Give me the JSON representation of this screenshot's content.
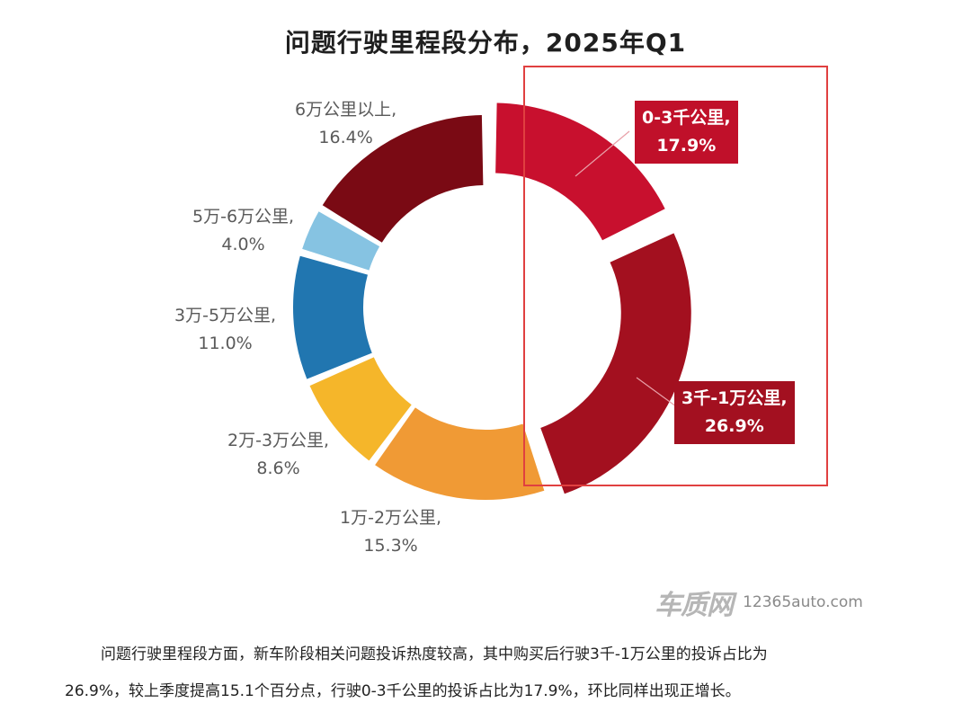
{
  "chart_data": {
    "type": "pie",
    "style": "donut",
    "title": "问题行驶里程段分布，2025年Q1",
    "slices": [
      {
        "label": "0-3千公里,",
        "value_text": "17.9%",
        "value": 17.9,
        "color": "#c8102e",
        "highlighted": true
      },
      {
        "label": "3千-1万公里,",
        "value_text": "26.9%",
        "value": 26.9,
        "color": "#a3101f",
        "highlighted": true
      },
      {
        "label": "1万-2万公里,",
        "value_text": "15.3%",
        "value": 15.3,
        "color": "#f09a35",
        "highlighted": false
      },
      {
        "label": "2万-3万公里,",
        "value_text": "8.6%",
        "value": 8.6,
        "color": "#f5b62a",
        "highlighted": false
      },
      {
        "label": "3万-5万公里,",
        "value_text": "11.0%",
        "value": 11.0,
        "color": "#2176b0",
        "highlighted": false
      },
      {
        "label": "5万-6万公里,",
        "value_text": "4.0%",
        "value": 4.0,
        "color": "#86c3e2",
        "highlighted": false
      },
      {
        "label": "6万公里以上,",
        "value_text": "16.4%",
        "value": 16.4,
        "color": "#7a0a14",
        "highlighted": false
      }
    ],
    "legend": "none",
    "grid": false
  },
  "watermark": {
    "logo": "车质网",
    "site": "12365auto.com"
  },
  "caption": [
    "问题行驶里程段方面，新车阶段相关问题投诉热度较高，其中购买后行驶3千-1万公里的投诉占比为",
    "26.9%，较上季度提高15.1个百分点，行驶0-3千公里的投诉占比为17.9%，环比同样出现正增长。"
  ]
}
